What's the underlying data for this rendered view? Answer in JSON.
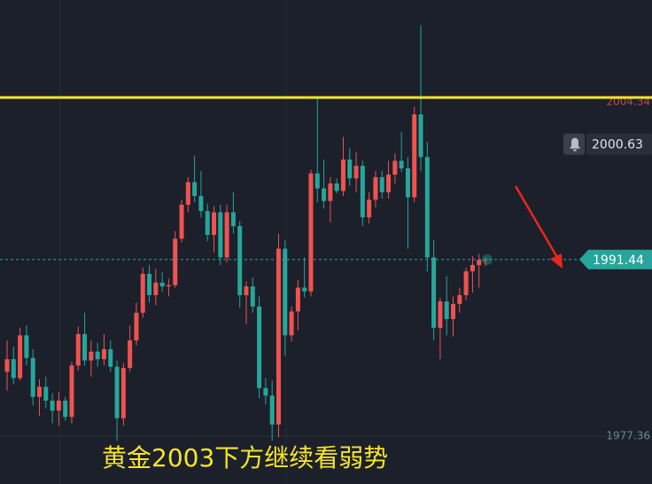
{
  "chart_data": {
    "type": "candlestick",
    "annotation": "黄金2003下方继续看弱势",
    "up_color": "#ef5350",
    "down_color": "#26a69a",
    "ylim": [
      1973.56,
      2012.11
    ],
    "yticks": [
      1977.36
    ],
    "hline": {
      "value": 2004.34,
      "color": "#f5e52a"
    },
    "last_price": 1991.44,
    "alert_price": 2000.63,
    "candles": [
      [
        1982.5,
        1985.0,
        1981.0,
        1983.5
      ],
      [
        1983.5,
        1984.5,
        1981.5,
        1982.0
      ],
      [
        1982.0,
        1986.0,
        1981.8,
        1985.4
      ],
      [
        1985.4,
        1986.2,
        1983.0,
        1983.6
      ],
      [
        1983.6,
        1984.3,
        1979.8,
        1980.5
      ],
      [
        1980.5,
        1981.9,
        1979.0,
        1981.3
      ],
      [
        1981.3,
        1982.1,
        1979.6,
        1980.2
      ],
      [
        1980.2,
        1980.8,
        1978.4,
        1979.4
      ],
      [
        1979.4,
        1980.9,
        1978.2,
        1980.2
      ],
      [
        1980.2,
        1980.5,
        1978.6,
        1978.9
      ],
      [
        1978.9,
        1983.3,
        1978.4,
        1983.0
      ],
      [
        1983.0,
        1986.1,
        1982.6,
        1985.5
      ],
      [
        1985.5,
        1987.2,
        1983.0,
        1983.4
      ],
      [
        1983.4,
        1985.0,
        1982.1,
        1984.1
      ],
      [
        1984.1,
        1984.8,
        1982.9,
        1983.5
      ],
      [
        1983.5,
        1985.5,
        1983.0,
        1984.3
      ],
      [
        1984.3,
        1985.0,
        1982.5,
        1982.9
      ],
      [
        1982.9,
        1983.4,
        1977.0,
        1978.8
      ],
      [
        1978.8,
        1983.2,
        1978.2,
        1982.8
      ],
      [
        1982.8,
        1986.2,
        1982.5,
        1985.0
      ],
      [
        1985.0,
        1988.0,
        1984.6,
        1987.2
      ],
      [
        1987.2,
        1990.8,
        1986.8,
        1990.3
      ],
      [
        1990.3,
        1991.0,
        1988.0,
        1988.6
      ],
      [
        1988.6,
        1990.7,
        1987.8,
        1989.6
      ],
      [
        1989.6,
        1990.4,
        1988.9,
        1989.3
      ],
      [
        1989.3,
        1989.9,
        1988.5,
        1989.4
      ],
      [
        1989.4,
        1993.7,
        1989.2,
        1993.1
      ],
      [
        1993.1,
        1996.2,
        1992.8,
        1995.8
      ],
      [
        1995.8,
        1998.0,
        1995.2,
        1997.6
      ],
      [
        1997.6,
        1999.7,
        1996.0,
        1996.5
      ],
      [
        1996.5,
        1998.5,
        1994.8,
        1995.3
      ],
      [
        1995.3,
        1995.9,
        1992.9,
        1993.4
      ],
      [
        1993.4,
        1995.7,
        1992.0,
        1995.2
      ],
      [
        1995.2,
        1995.8,
        1991.0,
        1991.6
      ],
      [
        1991.6,
        1995.8,
        1991.2,
        1995.2
      ],
      [
        1995.2,
        1996.8,
        1993.5,
        1994.1
      ],
      [
        1994.1,
        1994.5,
        1987.6,
        1988.6
      ],
      [
        1988.6,
        1989.7,
        1986.3,
        1989.3
      ],
      [
        1989.3,
        1990.0,
        1987.2,
        1987.7
      ],
      [
        1987.7,
        1988.5,
        1980.4,
        1981.2
      ],
      [
        1981.2,
        1982.0,
        1979.9,
        1980.6
      ],
      [
        1980.6,
        1981.8,
        1977.0,
        1978.3
      ],
      [
        1978.3,
        1993.5,
        1977.3,
        1992.3
      ],
      [
        1992.3,
        1993.0,
        1983.8,
        1985.4
      ],
      [
        1985.4,
        1987.7,
        1984.9,
        1987.3
      ],
      [
        1987.3,
        1989.8,
        1985.8,
        1989.2
      ],
      [
        1989.2,
        1991.6,
        1988.4,
        1988.9
      ],
      [
        1988.9,
        1998.6,
        1988.5,
        1998.3
      ],
      [
        1998.3,
        2004.3,
        1996.0,
        1997.1
      ],
      [
        1997.1,
        1999.4,
        1995.5,
        1996.1
      ],
      [
        1996.1,
        1998.0,
        1994.4,
        1997.5
      ],
      [
        1997.5,
        1997.9,
        1996.7,
        1996.9
      ],
      [
        1996.9,
        2001.2,
        1996.5,
        1999.4
      ],
      [
        1999.4,
        2000.3,
        1997.3,
        1997.9
      ],
      [
        1997.9,
        2000.0,
        1996.8,
        1998.9
      ],
      [
        1998.9,
        1999.3,
        1994.1,
        1994.8
      ],
      [
        1994.8,
        1996.8,
        1994.3,
        1996.2
      ],
      [
        1996.2,
        1998.5,
        1995.6,
        1998.0
      ],
      [
        1998.0,
        1998.5,
        1996.3,
        1996.8
      ],
      [
        1996.8,
        1999.3,
        1996.3,
        1998.2
      ],
      [
        1998.2,
        1999.9,
        1997.5,
        1999.3
      ],
      [
        1999.3,
        2001.6,
        1998.4,
        1998.7
      ],
      [
        1998.7,
        1999.6,
        1992.3,
        1996.4
      ],
      [
        1996.4,
        2003.6,
        1996.0,
        2003.0
      ],
      [
        2003.0,
        2010.1,
        1998.5,
        1999.6
      ],
      [
        1999.6,
        2000.8,
        1990.5,
        1991.6
      ],
      [
        1991.6,
        1993.0,
        1985.0,
        1986.0
      ],
      [
        1986.0,
        1988.4,
        1983.5,
        1988.1
      ],
      [
        1988.1,
        1990.1,
        1985.4,
        1986.7
      ],
      [
        1986.7,
        1988.5,
        1985.3,
        1987.9
      ],
      [
        1987.9,
        1989.2,
        1987.2,
        1988.6
      ],
      [
        1988.6,
        1990.8,
        1988.2,
        1990.5
      ],
      [
        1990.5,
        1991.7,
        1988.8,
        1991.0
      ],
      [
        1991.0,
        1991.9,
        1989.2,
        1991.4
      ],
      [
        1991.4,
        1991.6,
        1990.9,
        1991.44
      ]
    ]
  }
}
